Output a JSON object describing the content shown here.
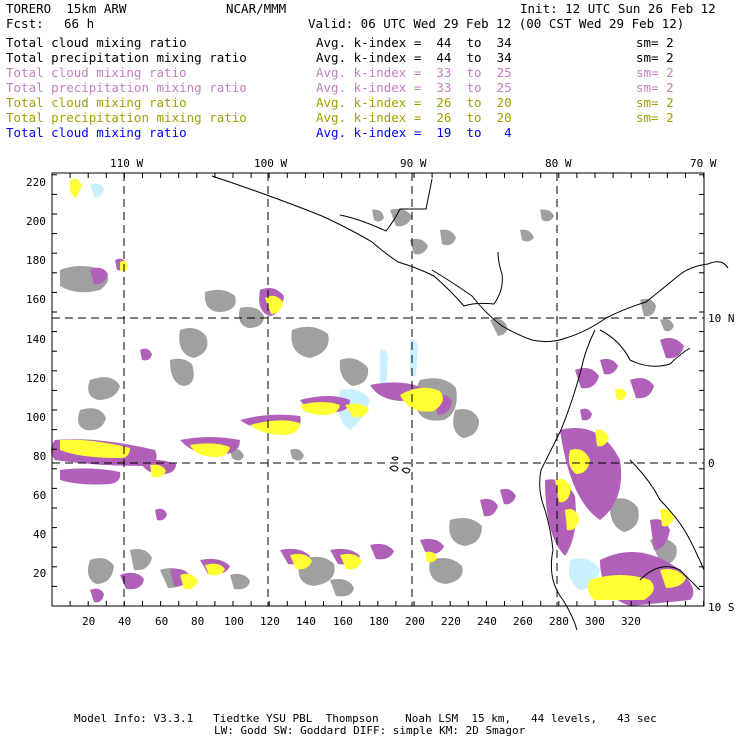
{
  "header": {
    "model": "TORERO  15km ARW",
    "org": "NCAR/MMM",
    "init": "Init: 12 UTC Sun 26 Feb 12",
    "fcst_label": "Fcst:",
    "fcst_value": "66 h",
    "valid": "Valid: 06 UTC Wed 29 Feb 12 (00 CST Wed 29 Feb 12)"
  },
  "legend": [
    {
      "field": "Total cloud mixing ratio",
      "index": "Avg. k-index =  44  to  34",
      "sm": "sm= 2",
      "color": "#000000"
    },
    {
      "field": "Total precipitation mixing ratio",
      "index": "Avg. k-index =  44  to  34",
      "sm": "sm= 2",
      "color": "#000000"
    },
    {
      "field": "Total cloud mixing ratio",
      "index": "Avg. k-index =  33  to  25",
      "sm": "sm= 2",
      "color": "#c080c0"
    },
    {
      "field": "Total precipitation mixing ratio",
      "index": "Avg. k-index =  33  to  25",
      "sm": "sm= 2",
      "color": "#c080c0"
    },
    {
      "field": "Total cloud mixing ratio",
      "index": "Avg. k-index =  26  to  20",
      "sm": "sm= 2",
      "color": "#a0a000"
    },
    {
      "field": "Total precipitation mixing ratio",
      "index": "Avg. k-index =  26  to  20",
      "sm": "sm= 2",
      "color": "#a0a000"
    },
    {
      "field": "Total cloud mixing ratio",
      "index": "Avg. k-index =  19  to   4",
      "sm": "",
      "color": "#0000ff"
    }
  ],
  "axes": {
    "lon_labels": [
      "110 W",
      "100 W",
      "90 W",
      "80 W",
      "70 W"
    ],
    "lat_labels": [
      "10 N",
      "0",
      "10 S"
    ],
    "y_ticks": [
      "220",
      "200",
      "180",
      "160",
      "140",
      "120",
      "100",
      "80",
      "60",
      "40",
      "20"
    ],
    "x_ticks": [
      "20",
      "40",
      "60",
      "80",
      "100",
      "120",
      "140",
      "160",
      "180",
      "200",
      "220",
      "240",
      "260",
      "280",
      "300",
      "320"
    ]
  },
  "footer": {
    "line1": "Model Info: V3.3.1   Tiedtke YSU PBL  Thompson    Noah LSM  15 km,   44 levels,   43 sec",
    "line2": "LW: Godd SW: Goddard DIFF: simple KM: 2D Smagor"
  },
  "colors": {
    "cloud_gray": "#a0a0a0",
    "precip_purple": "#b060b8",
    "precip_yellow": "#ffff33",
    "cloud_lightblue": "#c8f0ff",
    "coast": "#000000"
  }
}
